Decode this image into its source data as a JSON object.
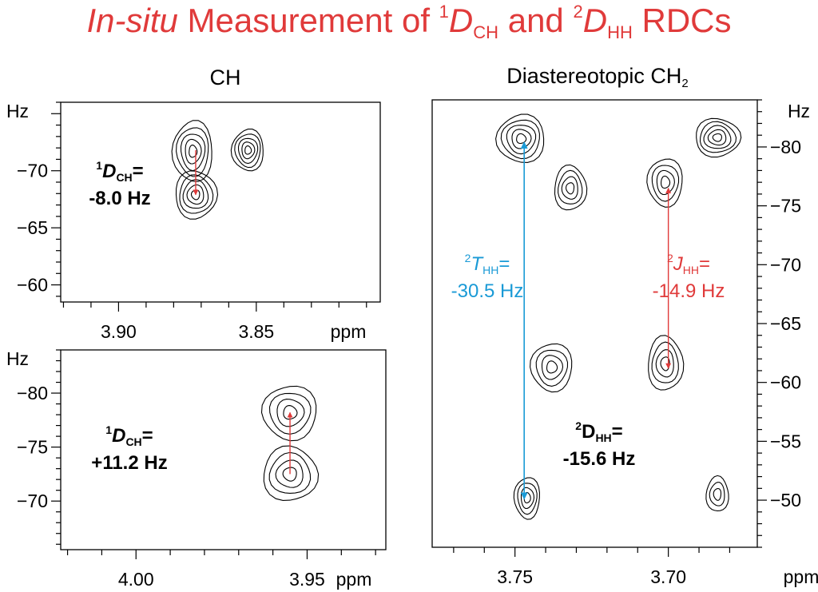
{
  "header": {
    "title_italic": "In-situ",
    "title_part1": " Measurement of ",
    "sup1": "1",
    "sym1": "D",
    "sub1": "CH",
    "title_and": " and ",
    "sup2": "2",
    "sym2": "D",
    "sub2": "HH",
    "title_end": " RDCs"
  },
  "colors": {
    "title": "#e03a3a",
    "red_arrow": "#e03a3a",
    "blue_arrow": "#1a9ad6",
    "contour": "#000000"
  },
  "chart_data": [
    {
      "type": "contour",
      "title": "CH",
      "xlabel": "ppm",
      "ylabel": "Hz",
      "x_reversed": true,
      "xlim": [
        3.921,
        3.805
      ],
      "ylim": [
        -76,
        -58.5
      ],
      "xticks": [
        3.9,
        3.85
      ],
      "yticks": [
        -70,
        -65,
        -60
      ],
      "peaks": [
        {
          "x": 3.873,
          "y": -71.7
        },
        {
          "x": 3.872,
          "y": -67.9
        },
        {
          "x": 3.853,
          "y": -71.8
        }
      ],
      "arrows": [
        {
          "x": 3.872,
          "y_from": -71.8,
          "y_to": -67.9,
          "color": "red"
        }
      ],
      "annotation": {
        "sup": "1",
        "sym": "D",
        "sub": "CH",
        "eq": "=",
        "value": "-8.0 Hz"
      }
    },
    {
      "type": "contour",
      "xlabel": "ppm",
      "ylabel": "Hz",
      "x_reversed": true,
      "xlim": [
        4.022,
        3.927
      ],
      "ylim": [
        -84,
        -65.5
      ],
      "xticks": [
        4.0,
        3.95
      ],
      "yticks": [
        -80,
        -75,
        -70
      ],
      "peaks": [
        {
          "x": 3.955,
          "y": -78.2
        },
        {
          "x": 3.955,
          "y": -72.5
        }
      ],
      "arrows": [
        {
          "x": 3.955,
          "y_from": -72.5,
          "y_to": -78.2,
          "color": "red"
        }
      ],
      "annotation": {
        "sup": "1",
        "sym": "D",
        "sub": "CH",
        "eq": "=",
        "value": "+11.2 Hz"
      }
    },
    {
      "type": "contour",
      "title": "Diastereotopic CH",
      "title_sub": "2",
      "xlabel": "ppm",
      "ylabel": "Hz",
      "x_reversed": true,
      "xlim": [
        3.777,
        3.671
      ],
      "ylim": [
        -84,
        -46
      ],
      "xticks": [
        3.75,
        3.7
      ],
      "yticks": [
        -80,
        -75,
        -70,
        -65,
        -60,
        -55,
        -50
      ],
      "peaks": [
        {
          "x": 3.748,
          "y": -80.7
        },
        {
          "x": 3.732,
          "y": -76.5
        },
        {
          "x": 3.701,
          "y": -77.0
        },
        {
          "x": 3.684,
          "y": -80.8
        },
        {
          "x": 3.738,
          "y": -61.3
        },
        {
          "x": 3.701,
          "y": -61.6
        },
        {
          "x": 3.746,
          "y": -50.2
        },
        {
          "x": 3.684,
          "y": -50.5
        }
      ],
      "arrows": [
        {
          "x": 3.747,
          "y_from": -80.4,
          "y_to": -50.1,
          "color": "blue",
          "double": true
        },
        {
          "x": 3.7,
          "y_from": -76.5,
          "y_to": -61.2,
          "color": "red",
          "double": true
        }
      ],
      "annotations": [
        {
          "sup": "2",
          "sym": "T",
          "sub": "HH",
          "eq": "=",
          "value": "-30.5 Hz",
          "color": "blue"
        },
        {
          "sup": "2",
          "sym": "J",
          "sub": "HH",
          "eq": "=",
          "value": "-14.9 Hz",
          "color": "red"
        },
        {
          "sup": "2",
          "sym": "D",
          "sub": "HH",
          "eq": "=",
          "value": "-15.6 Hz",
          "color": "black"
        }
      ]
    }
  ]
}
